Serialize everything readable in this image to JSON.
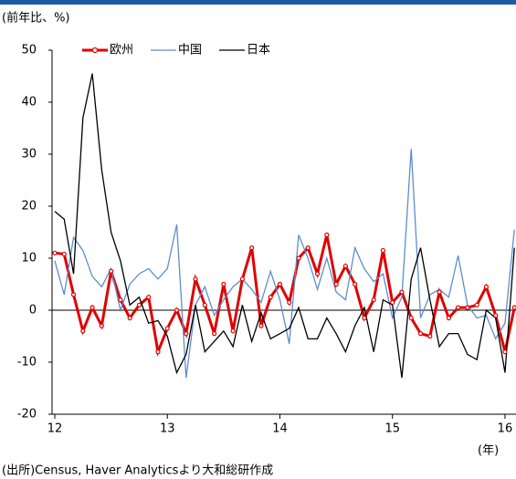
{
  "chart_data": {
    "type": "line",
    "title": "(前年比、%)",
    "xlabel": "(年)",
    "source": "(出所)Census, Haver Analyticsより大和総研作成",
    "categories": [
      "12",
      null,
      null,
      null,
      null,
      null,
      null,
      null,
      null,
      null,
      null,
      null,
      "13",
      null,
      null,
      null,
      null,
      null,
      null,
      null,
      null,
      null,
      null,
      null,
      "14",
      null,
      null,
      null,
      null,
      null,
      null,
      null,
      null,
      null,
      null,
      null,
      "15",
      null,
      null,
      null,
      null,
      null,
      null,
      null,
      null,
      null,
      null,
      null,
      "16",
      null
    ],
    "series": [
      {
        "name": "欧州",
        "color": "#e00000",
        "values": [
          11,
          10.8,
          3,
          -4,
          0.5,
          -3,
          7.5,
          2,
          -1.5,
          1,
          2.5,
          -8,
          -3.5,
          0,
          -4.5,
          6,
          1,
          -4.5,
          5,
          -4,
          6,
          12,
          -3,
          2.5,
          5,
          1.5,
          10,
          12,
          7,
          14.5,
          5,
          8.5,
          5,
          -1.5,
          2,
          11.5,
          1.5,
          3.5,
          -1.5,
          -4.5,
          -5,
          3.5,
          -1.5,
          0.5,
          0.5,
          1,
          4.5,
          -1,
          -8,
          0.5
        ]
      },
      {
        "name": "中国",
        "color": "#5b8fd0",
        "values": [
          9.5,
          3,
          14,
          11.5,
          6.5,
          4.5,
          8,
          0,
          5,
          7,
          8,
          6,
          8,
          16.5,
          -13,
          1,
          4.5,
          -1,
          2,
          4.5,
          6,
          4,
          1.5,
          7.5,
          2,
          -6.5,
          14.5,
          10,
          4,
          10,
          3.5,
          2,
          12,
          8,
          5.5,
          7,
          -1.5,
          2.5,
          31,
          -1.5,
          3,
          4,
          2.5,
          10.5,
          1,
          -1.5,
          -1,
          -5.5,
          -2.5,
          15.5
        ]
      },
      {
        "name": "日本",
        "color": "#000000",
        "values": [
          19,
          17.5,
          7,
          37,
          45.5,
          27,
          15,
          9.5,
          1,
          2.5,
          -2.5,
          -2,
          -5,
          -12,
          -8.5,
          1,
          -8,
          -6,
          -4,
          -7,
          1,
          -6,
          -0.5,
          -5.5,
          -4.5,
          -3.5,
          0.5,
          -5.5,
          -5.5,
          -1.5,
          -4.5,
          -8,
          -3,
          0.5,
          -8,
          2,
          1,
          -13,
          6,
          12,
          2,
          -7,
          -4.5,
          -4.5,
          -8.5,
          -9.5,
          0,
          -1.5,
          -12,
          12
        ]
      }
    ],
    "ylim": [
      -20,
      50
    ],
    "yticks": [
      -20,
      -10,
      0,
      10,
      20,
      30,
      40,
      50
    ]
  }
}
